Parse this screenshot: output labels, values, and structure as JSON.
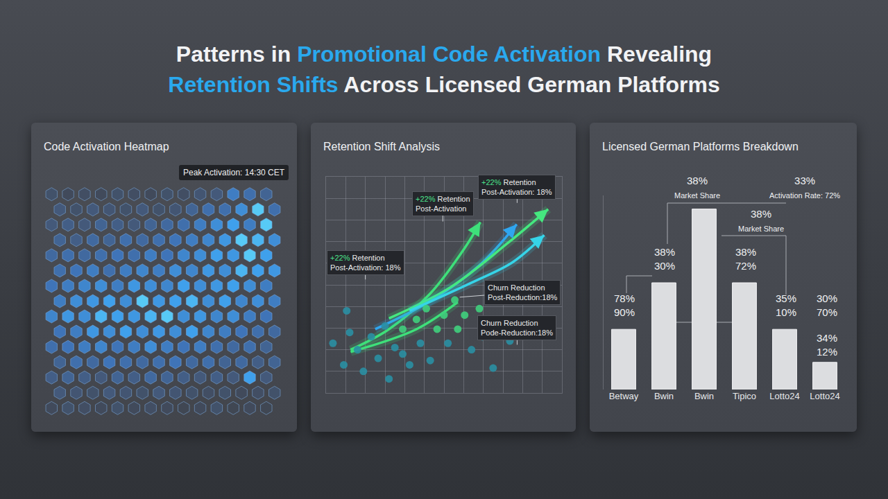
{
  "title": "Patterns in Promotional Code Activation Revealing Retention Shifts Across Licensed German Platforms",
  "title_highlights": [
    "Promotional Code Activation",
    "Retention Shifts"
  ],
  "chart_data": [
    {
      "type": "heatmap",
      "title": "Code Activation Heatmap",
      "marker": "hexagon",
      "tick_labels": false,
      "zlim": [
        0,
        1
      ],
      "annotations": [
        "Peak Activation: 14:30 CET"
      ],
      "cells": [
        [
          0.2,
          0.1,
          0.15,
          0.1,
          0.2,
          0.15,
          0.1,
          0.2,
          0.15,
          0.25,
          0.3,
          0.6,
          0.5,
          0.4
        ],
        [
          0.3,
          0.2,
          0.3,
          0.25,
          0.2,
          0.3,
          0.2,
          0.25,
          0.4,
          0.5,
          0.5,
          0.7,
          0.9,
          0.5
        ],
        [
          0.3,
          0.35,
          0.3,
          0.4,
          0.35,
          0.3,
          0.4,
          0.45,
          0.5,
          0.6,
          0.7,
          0.8,
          0.6,
          0.9
        ],
        [
          0.4,
          0.35,
          0.45,
          0.4,
          0.5,
          0.45,
          0.5,
          0.55,
          0.6,
          0.65,
          0.75,
          0.9,
          0.85,
          0.7
        ],
        [
          0.45,
          0.5,
          0.45,
          0.5,
          0.55,
          0.5,
          0.6,
          0.55,
          0.65,
          0.7,
          0.8,
          0.75,
          0.9,
          0.8
        ],
        [
          0.5,
          0.55,
          0.6,
          0.5,
          0.6,
          0.65,
          0.6,
          0.7,
          0.65,
          0.75,
          0.7,
          0.85,
          0.8,
          0.75
        ],
        [
          0.55,
          0.6,
          0.65,
          0.7,
          0.6,
          0.75,
          0.7,
          0.65,
          0.8,
          0.7,
          0.75,
          0.8,
          0.7,
          0.6
        ],
        [
          0.6,
          0.7,
          0.75,
          0.8,
          0.7,
          0.9,
          0.75,
          0.8,
          0.85,
          0.7,
          0.8,
          0.65,
          0.7,
          0.6
        ],
        [
          0.65,
          0.75,
          0.7,
          0.85,
          0.8,
          0.75,
          0.85,
          0.9,
          0.7,
          0.75,
          0.65,
          0.7,
          0.6,
          0.55
        ],
        [
          0.55,
          0.6,
          0.75,
          0.7,
          0.8,
          0.7,
          0.75,
          0.7,
          0.8,
          0.65,
          0.6,
          0.55,
          0.5,
          0.45
        ],
        [
          0.5,
          0.55,
          0.6,
          0.65,
          0.55,
          0.6,
          0.7,
          0.6,
          0.55,
          0.6,
          0.5,
          0.45,
          0.5,
          0.4
        ],
        [
          0.4,
          0.5,
          0.45,
          0.55,
          0.5,
          0.45,
          0.5,
          0.55,
          0.45,
          0.5,
          0.4,
          0.45,
          0.35,
          0.4
        ],
        [
          0.35,
          0.4,
          0.35,
          0.3,
          0.4,
          0.35,
          0.45,
          0.4,
          0.35,
          0.3,
          0.35,
          0.3,
          0.8,
          0.3
        ],
        [
          0.3,
          0.25,
          0.2,
          0.3,
          0.25,
          0.2,
          0.3,
          0.25,
          0.2,
          0.15,
          0.2,
          0.1,
          0.15,
          0.2
        ],
        [
          0.1,
          0.2,
          0.15,
          0.1,
          0.2,
          0.1,
          0.15,
          0.1,
          0.05,
          0.1,
          0.2,
          0.05,
          0.1,
          0.05
        ]
      ]
    },
    {
      "type": "scatter",
      "title": "Retention Shift Analysis",
      "grid": true,
      "tick_labels": false,
      "xlim": [
        0,
        12
      ],
      "ylim": [
        0,
        10
      ],
      "xticks": [
        0,
        1,
        2,
        3,
        4,
        5,
        6,
        7,
        8,
        9,
        10,
        11,
        12
      ],
      "yticks": [
        0,
        1,
        2,
        3,
        4,
        5,
        6,
        7,
        8,
        9,
        10
      ],
      "x": [
        0.35,
        0.9,
        1.2,
        1.6,
        1.9,
        2.3,
        2.65,
        3.0,
        3.2,
        3.5,
        3.9,
        4.25,
        4.6,
        4.8,
        5.1,
        5.3,
        5.65,
        6.0,
        6.2,
        6.55,
        6.7,
        7.05,
        7.4,
        7.8,
        7.95,
        8.5,
        8.8,
        9.35,
        1.05,
        3.9
      ],
      "values": [
        2.3,
        1.3,
        2.8,
        2.0,
        1.0,
        2.6,
        1.6,
        3.1,
        0.65,
        2.1,
        2.95,
        1.3,
        3.4,
        2.3,
        3.9,
        1.5,
        2.95,
        3.6,
        2.3,
        4.3,
        2.95,
        3.6,
        2.0,
        3.9,
        2.6,
        1.15,
        2.95,
        2.4,
        3.8,
        1.8
      ],
      "colors": [
        "#2a8fa3",
        "#2a8fa3",
        "#2a8fa3",
        "#2a8fa3",
        "#2a8fa3",
        "#2a8fa3",
        "#2a8fa3",
        "#2a8fa3",
        "#2a8fa3",
        "#2a8fa3",
        "#3fcf7c",
        "#2a8fa3",
        "#3fcf7c",
        "#2a8fa3",
        "#3fcf7c",
        "#2a8fa3",
        "#3fcf7c",
        "#3fcf7c",
        "#2a8fa3",
        "#3fcf7c",
        "#3fcf7c",
        "#3fcf7c",
        "#2a8fa3",
        "#3fcf7c",
        "#2a8fa3",
        "#2a8fa3",
        "#2a8fa3",
        "#2a8fa3",
        "#2a8fa3",
        "#2a8fa3"
      ],
      "arrows": [
        {
          "color": "#3ee07a",
          "marker": "arrow",
          "x": [
            1.25,
            3.2,
            5.3,
            7.05,
            7.85
          ],
          "y": [
            2.0,
            2.95,
            4.6,
            6.7,
            7.9
          ]
        },
        {
          "color": "#2fa6f0",
          "marker": "arrow",
          "x": [
            2.5,
            5.3,
            7.8,
            9.7
          ],
          "y": [
            2.95,
            4.25,
            5.9,
            7.8
          ]
        },
        {
          "color": "#45e87f",
          "marker": "arrow",
          "x": [
            3.2,
            6.35,
            9.2,
            11.3
          ],
          "y": [
            3.45,
            4.9,
            6.9,
            8.5
          ]
        },
        {
          "color": "#36d4e8",
          "marker": "arrow",
          "x": [
            4.25,
            7.4,
            9.5,
            11.1
          ],
          "y": [
            3.8,
            5.1,
            6.05,
            7.3
          ]
        },
        {
          "color": "#3ee07a",
          "marker": "none",
          "x": [
            1.25,
            4.6,
            6.7
          ],
          "y": [
            1.9,
            2.95,
            4.2
          ]
        }
      ],
      "annotations": [
        [
          "+22% Retention",
          "Post-Activation"
        ],
        [
          "+22% Retention",
          "Post-Activation: 18%"
        ],
        [
          "+22% Retention",
          "Post-Activation: 18%"
        ],
        [
          "Churn Reduction",
          "Post-Reduction:18%"
        ],
        [
          "Churn Reduction",
          "Pode-Reduction:18%"
        ]
      ]
    },
    {
      "type": "bar",
      "title": "Licensed German Platforms Breakdown",
      "color": "#dcdde0",
      "grid": false,
      "tick_labels": "x",
      "categories": [
        "Betway",
        "Bwin",
        "Bwin",
        "Tipico",
        "Lotto24",
        "Lotto24"
      ],
      "values": [
        31,
        55,
        93,
        55,
        31,
        14
      ],
      "ylim": [
        0,
        100
      ],
      "yticks": [
        0,
        100
      ],
      "labels": [
        [
          "38%",
          "Market Share"
        ],
        [
          "33%",
          "Activation Rate: 72%"
        ],
        [
          "38%",
          "Market Share"
        ],
        [
          "38%",
          "30%"
        ],
        [
          "78%",
          "90%"
        ],
        [
          "38%",
          "72%"
        ],
        [
          "35%",
          "10%"
        ],
        [
          "30%",
          "70%"
        ],
        [
          "34%",
          "12%"
        ]
      ]
    }
  ]
}
